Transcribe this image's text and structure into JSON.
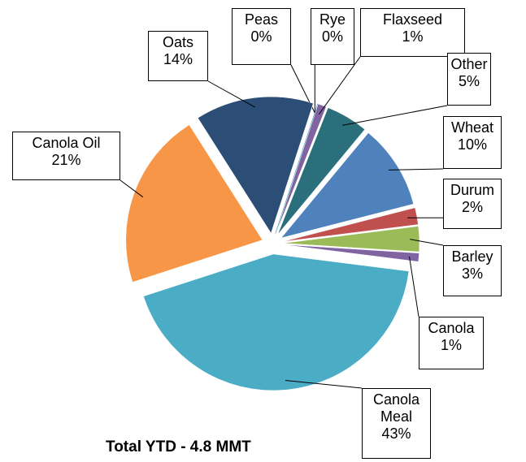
{
  "chart_data": {
    "type": "pie",
    "title": "Total YTD - 4.8 MMT",
    "categories": [
      "Peas",
      "Rye",
      "Flaxseed",
      "Other",
      "Wheat",
      "Durum",
      "Barley",
      "Canola",
      "Canola Meal",
      "Canola Oil",
      "Oats"
    ],
    "values": [
      0,
      0,
      1,
      5,
      10,
      2,
      3,
      1,
      43,
      21,
      14
    ],
    "value_labels": [
      "0%",
      "0%",
      "1%",
      "5%",
      "10%",
      "2%",
      "3%",
      "1%",
      "43%",
      "21%",
      "14%"
    ],
    "colors": [
      "#7f7f7f",
      "#4bacc6",
      "#8064a2",
      "#2b6f7c",
      "#4f81bd",
      "#c0504d",
      "#9bbb59",
      "#8064a2",
      "#4bacc6",
      "#f79646",
      "#2c4d75"
    ]
  }
}
